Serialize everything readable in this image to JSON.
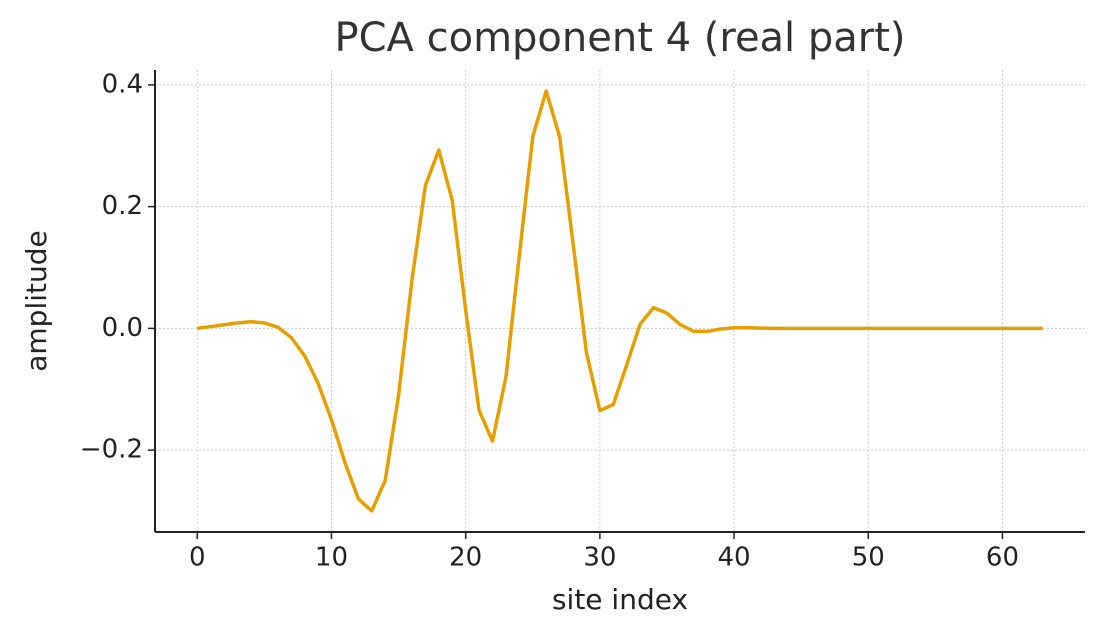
{
  "chart_data": {
    "type": "line",
    "title": "PCA component 4 (real part)",
    "x_label": "site index",
    "y_label": "amplitude",
    "x": [
      0,
      1,
      2,
      3,
      4,
      5,
      6,
      7,
      8,
      9,
      10,
      11,
      12,
      13,
      14,
      15,
      16,
      17,
      18,
      19,
      20,
      21,
      22,
      23,
      24,
      25,
      26,
      27,
      28,
      29,
      30,
      31,
      32,
      33,
      34,
      35,
      36,
      37,
      38,
      39,
      40,
      41,
      42,
      43,
      44,
      45,
      46,
      47,
      48,
      49,
      50,
      51,
      52,
      53,
      54,
      55,
      56,
      57,
      58,
      59,
      60,
      61,
      62,
      63
    ],
    "series": [
      {
        "color": "#e69f00",
        "values": [
          0,
          0.003,
          0.006,
          0.009,
          0.011,
          0.009,
          0.002,
          -0.015,
          -0.045,
          -0.09,
          -0.15,
          -0.22,
          -0.28,
          -0.3,
          -0.25,
          -0.11,
          0.08,
          0.235,
          0.293,
          0.21,
          0.03,
          -0.135,
          -0.185,
          -0.08,
          0.12,
          0.315,
          0.39,
          0.315,
          0.14,
          -0.04,
          -0.135,
          -0.125,
          -0.06,
          0.007,
          0.034,
          0.025,
          0.006,
          -0.005,
          -0.005,
          -0.001,
          0.001,
          0.001,
          0.0005,
          0,
          0,
          0,
          0,
          0,
          0,
          0,
          0,
          0,
          0,
          0,
          0,
          0,
          0,
          0,
          0,
          0,
          0,
          0,
          0,
          0
        ]
      }
    ],
    "xlim": [
      -3.15,
      66.15
    ],
    "ylim": [
      -0.3345,
      0.4245
    ],
    "xticks": [
      0,
      10,
      20,
      30,
      40,
      50,
      60
    ],
    "yticks": [
      {
        "value": -0.2,
        "label": "−0.2"
      },
      {
        "value": 0,
        "label": "0.0"
      },
      {
        "value": 0.2,
        "label": "0.2"
      },
      {
        "value": 0.4,
        "label": "0.4"
      }
    ],
    "grid": true
  }
}
